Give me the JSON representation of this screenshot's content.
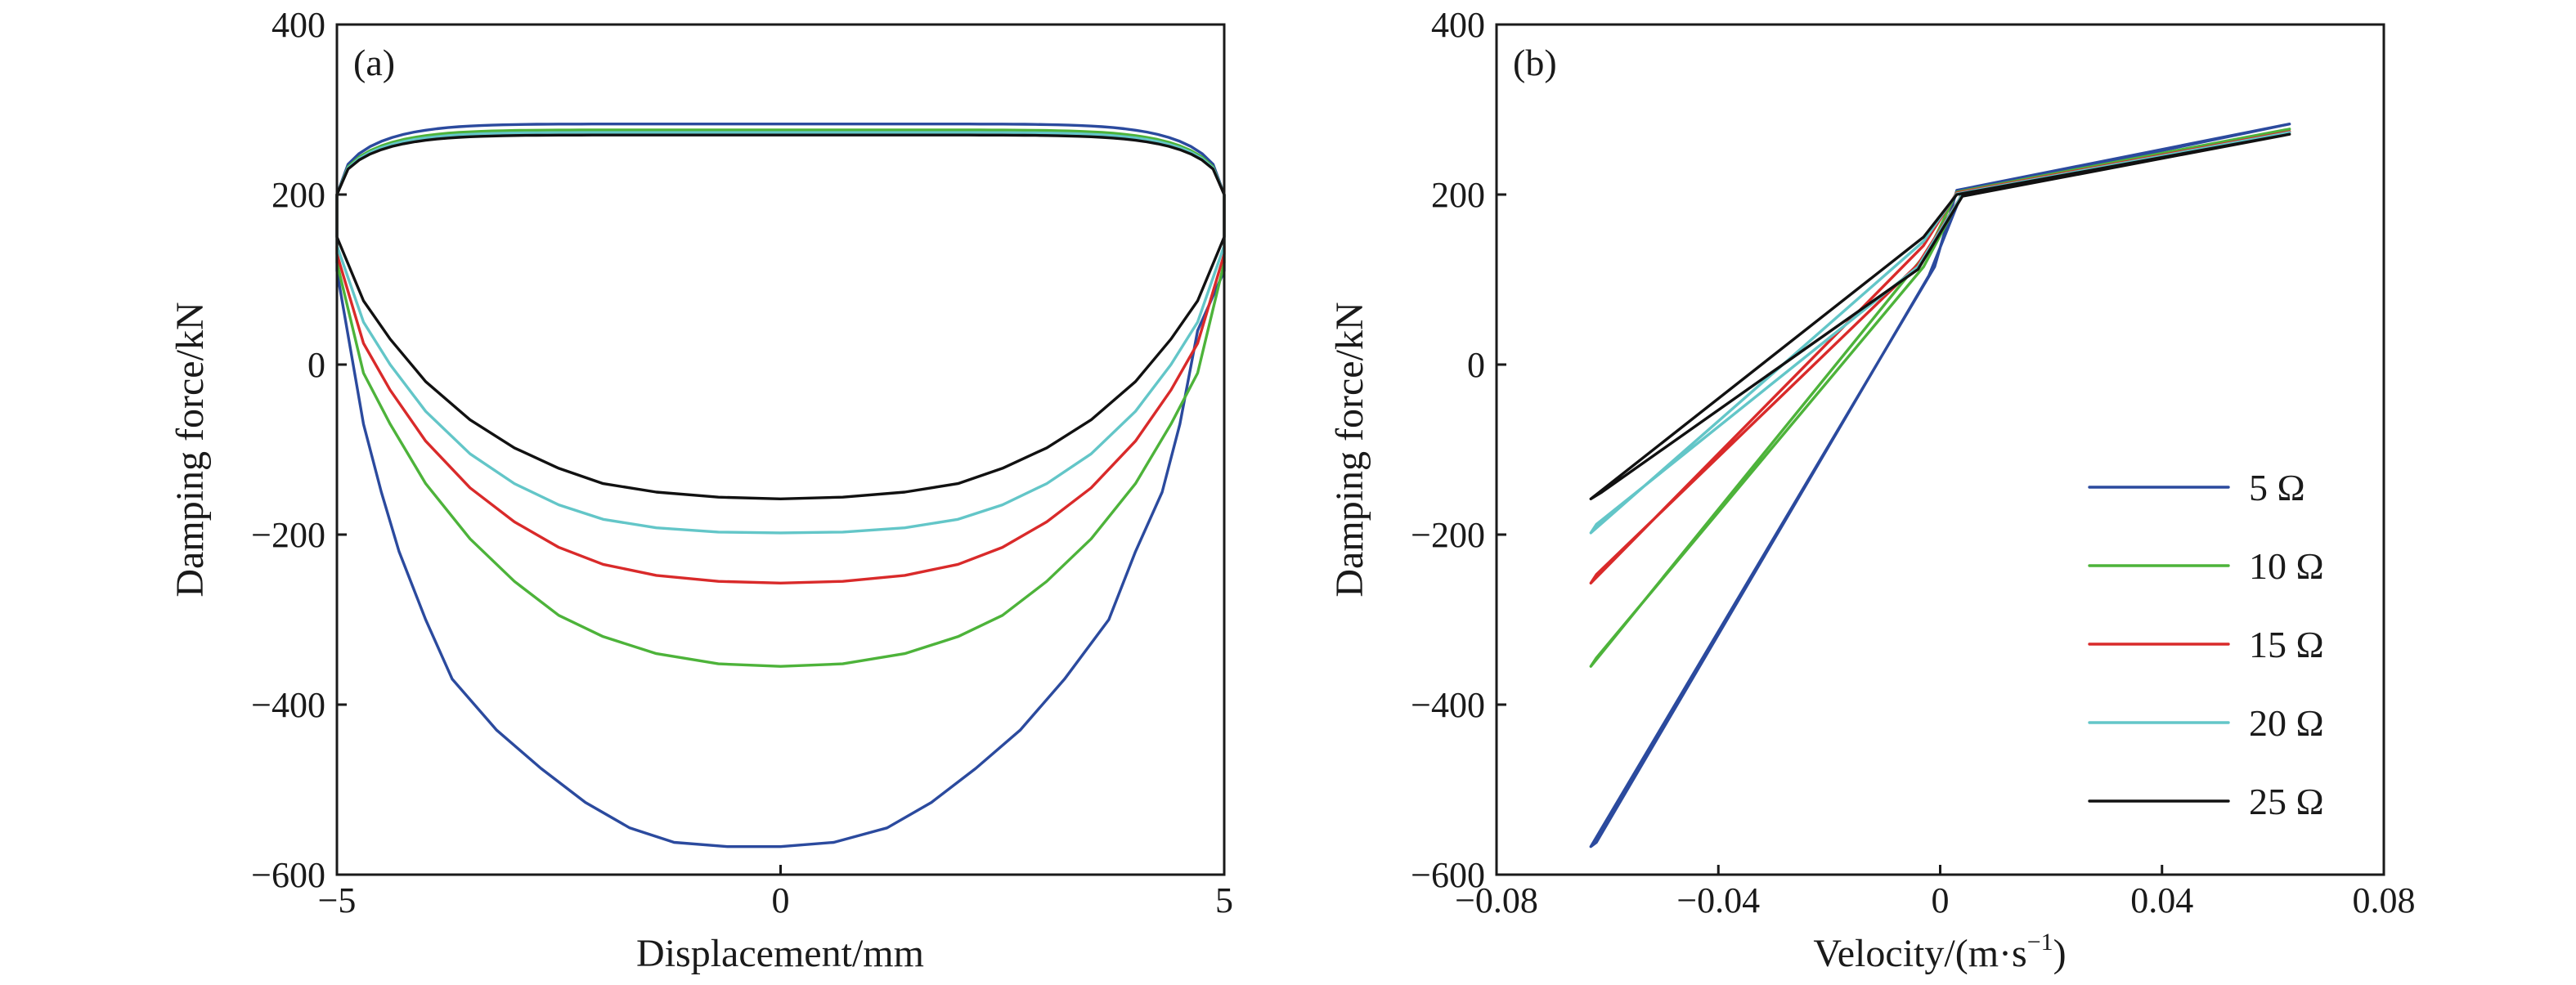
{
  "chart_data": [
    {
      "type": "line",
      "panel_label": "(a)",
      "title": "",
      "xlabel": "Displacement/mm",
      "ylabel": "Damping force/kN",
      "xlim": [
        -5,
        5
      ],
      "ylim": [
        -600,
        400
      ],
      "xticks": [
        -5,
        0,
        5
      ],
      "yticks": [
        -600,
        -400,
        -200,
        0,
        200,
        400
      ],
      "xtick_labels": [
        "−5",
        "0",
        "5"
      ],
      "ytick_labels": [
        "−600",
        "−400",
        "−200",
        "0",
        "200",
        "400"
      ],
      "grid": false,
      "legend": "none",
      "series": [
        {
          "legend_ref": "5 Ω",
          "color": "#2b4a9e",
          "upper_peak": 283,
          "lower_min": -567,
          "lower_branch": {
            "x": [
              -5,
              -4.7,
              -4.5,
              -4.3,
              -4,
              -3.7,
              -3.2,
              -2.7,
              -2.2,
              -1.7,
              -1.2,
              -0.6,
              0,
              0.6,
              1.2,
              1.7,
              2.2,
              2.7,
              3.2,
              3.7,
              4,
              4.3,
              4.5,
              4.7,
              5
            ],
            "y": [
              110,
              -70,
              -150,
              -220,
              -300,
              -370,
              -430,
              -475,
              -515,
              -545,
              -562,
              -567,
              -567,
              -562,
              -545,
              -515,
              -475,
              -430,
              -370,
              -300,
              -220,
              -150,
              -70,
              40,
              110
            ]
          }
        },
        {
          "legend_ref": "10 Ω",
          "color": "#4db33a",
          "upper_peak": 276,
          "lower_min": -355,
          "lower_branch": {
            "x": [
              -5,
              -4.7,
              -4.4,
              -4,
              -3.5,
              -3,
              -2.5,
              -2,
              -1.4,
              -0.7,
              0,
              0.7,
              1.4,
              2,
              2.5,
              3,
              3.5,
              4,
              4.4,
              4.7,
              5
            ],
            "y": [
              120,
              -10,
              -70,
              -140,
              -205,
              -255,
              -295,
              -320,
              -340,
              -352,
              -355,
              -352,
              -340,
              -320,
              -295,
              -255,
              -205,
              -140,
              -70,
              -10,
              120
            ]
          }
        },
        {
          "legend_ref": "15 Ω",
          "color": "#d92a2a",
          "upper_peak": 272,
          "lower_min": -257,
          "lower_branch": {
            "x": [
              -5,
              -4.7,
              -4.4,
              -4,
              -3.5,
              -3,
              -2.5,
              -2,
              -1.4,
              -0.7,
              0,
              0.7,
              1.4,
              2,
              2.5,
              3,
              3.5,
              4,
              4.4,
              4.7,
              5
            ],
            "y": [
              130,
              25,
              -30,
              -90,
              -145,
              -185,
              -215,
              -235,
              -248,
              -255,
              -257,
              -255,
              -248,
              -235,
              -215,
              -185,
              -145,
              -90,
              -30,
              25,
              130
            ]
          }
        },
        {
          "legend_ref": "20 Ω",
          "color": "#63c6c8",
          "upper_peak": 273,
          "lower_min": -198,
          "lower_branch": {
            "x": [
              -5,
              -4.7,
              -4.4,
              -4,
              -3.5,
              -3,
              -2.5,
              -2,
              -1.4,
              -0.7,
              0,
              0.7,
              1.4,
              2,
              2.5,
              3,
              3.5,
              4,
              4.4,
              4.7,
              5
            ],
            "y": [
              140,
              50,
              0,
              -55,
              -105,
              -140,
              -165,
              -182,
              -192,
              -197,
              -198,
              -197,
              -192,
              -182,
              -165,
              -140,
              -105,
              -55,
              0,
              50,
              140
            ]
          }
        },
        {
          "legend_ref": "25 Ω",
          "color": "#111111",
          "upper_peak": 270,
          "lower_min": -158,
          "lower_branch": {
            "x": [
              -5,
              -4.7,
              -4.4,
              -4,
              -3.5,
              -3,
              -2.5,
              -2,
              -1.4,
              -0.7,
              0,
              0.7,
              1.4,
              2,
              2.5,
              3,
              3.5,
              4,
              4.4,
              4.7,
              5
            ],
            "y": [
              150,
              75,
              30,
              -20,
              -65,
              -98,
              -122,
              -140,
              -150,
              -156,
              -158,
              -156,
              -150,
              -140,
              -122,
              -98,
              -65,
              -20,
              30,
              75,
              150
            ]
          }
        }
      ]
    },
    {
      "type": "line",
      "panel_label": "(b)",
      "title": "",
      "xlabel": "Velocity/(m·s",
      "xlabel_sup": "−1",
      "xlabel_end": ")",
      "ylabel": "Damping force/kN",
      "xlim": [
        -0.08,
        0.08
      ],
      "ylim": [
        -600,
        400
      ],
      "xticks": [
        -0.08,
        -0.04,
        0,
        0.04,
        0.08
      ],
      "yticks": [
        -600,
        -400,
        -200,
        0,
        200,
        400
      ],
      "xtick_labels": [
        "−0.08",
        "−0.04",
        "0",
        "0.04",
        "0.08"
      ],
      "ytick_labels": [
        "−600",
        "−400",
        "−200",
        "0",
        "200",
        "400"
      ],
      "grid": false,
      "legend": "bottom-right",
      "series": [
        {
          "name": "5 Ω",
          "color": "#2b4a9e",
          "points": {
            "x": [
              0.063,
              0.003,
              -0.001,
              -0.063,
              -0.062,
              -0.002,
              0.004,
              0.063
            ],
            "y": [
              283,
              205,
              115,
              -567,
              -562,
              105,
              203,
              283
            ]
          }
        },
        {
          "name": "10 Ω",
          "color": "#4db33a",
          "points": {
            "x": [
              0.063,
              0.003,
              -0.002,
              -0.063,
              -0.062,
              -0.003,
              0.004,
              0.063
            ],
            "y": [
              277,
              203,
              135,
              -355,
              -345,
              115,
              201,
              277
            ]
          }
        },
        {
          "name": "15 Ω",
          "color": "#d92a2a",
          "points": {
            "x": [
              0.063,
              0.003,
              -0.003,
              -0.063,
              -0.062,
              -0.004,
              0.004,
              0.063
            ],
            "y": [
              274,
              202,
              140,
              -257,
              -247,
              118,
              200,
              274
            ]
          }
        },
        {
          "name": "20 Ω",
          "color": "#63c6c8",
          "points": {
            "x": [
              0.063,
              0.003,
              -0.003,
              -0.063,
              -0.062,
              -0.004,
              0.004,
              0.063
            ],
            "y": [
              273,
              201,
              145,
              -198,
              -188,
              115,
              200,
              273
            ]
          }
        },
        {
          "name": "25 Ω",
          "color": "#111111",
          "points": {
            "x": [
              0.063,
              0.003,
              -0.003,
              -0.063,
              -0.061,
              -0.004,
              0.004,
              0.063
            ],
            "y": [
              271,
              200,
              150,
              -158,
              -150,
              112,
              198,
              271
            ]
          }
        }
      ]
    }
  ]
}
